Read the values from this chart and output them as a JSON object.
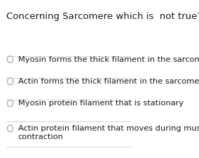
{
  "title": "Concerning Sarcomere which is  not true?",
  "options": [
    "Myosin forms the thick filament in the sarcomere.",
    "Actin forms the thick filament in the sarcomere.",
    "Myosin protein filament that is stationary",
    "Actin protein filament that moves during muscle\ncontraction"
  ],
  "background_color": "#ffffff",
  "title_color": "#1a1a1a",
  "option_color": "#1a1a1a",
  "title_fontsize": 9.5,
  "option_fontsize": 8.2,
  "radio_color": "#b0b0b0",
  "line_color": "#cccccc"
}
